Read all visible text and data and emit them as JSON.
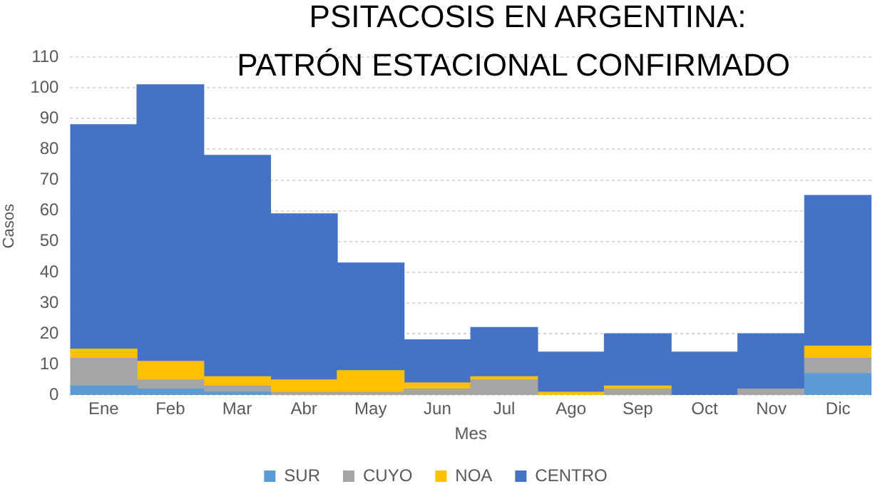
{
  "chart_data": {
    "type": "bar",
    "stacked": true,
    "title": "PSITACOSIS EN ARGENTINA:\nPATRÓN ESTACIONAL CONFIRMADO",
    "xlabel": "Mes",
    "ylabel": "Casos",
    "categories": [
      "Ene",
      "Feb",
      "Mar",
      "Abr",
      "May",
      "Jun",
      "Jul",
      "Ago",
      "Sep",
      "Oct",
      "Nov",
      "Dic"
    ],
    "series": [
      {
        "name": "SUR",
        "color": "#5b9bd5",
        "values": [
          3,
          2,
          1,
          null,
          null,
          null,
          null,
          null,
          null,
          null,
          null,
          7
        ]
      },
      {
        "name": "CUYO",
        "color": "#a5a5a5",
        "values": [
          9,
          3,
          2,
          1,
          1,
          2,
          5,
          null,
          2,
          null,
          2,
          5
        ]
      },
      {
        "name": "NOA",
        "color": "#ffc000",
        "values": [
          3,
          6,
          3,
          4,
          7,
          2,
          1,
          1,
          1,
          null,
          null,
          4
        ]
      },
      {
        "name": "CENTRO",
        "color": "#4472c4",
        "values": [
          73,
          90,
          72,
          54,
          35,
          14,
          16,
          13,
          17,
          14,
          18,
          49
        ]
      }
    ],
    "ylim": [
      0,
      110
    ],
    "yticks": [
      0,
      10,
      20,
      30,
      40,
      50,
      60,
      70,
      80,
      90,
      100,
      110
    ],
    "grid": "y",
    "legend": "bottom"
  }
}
